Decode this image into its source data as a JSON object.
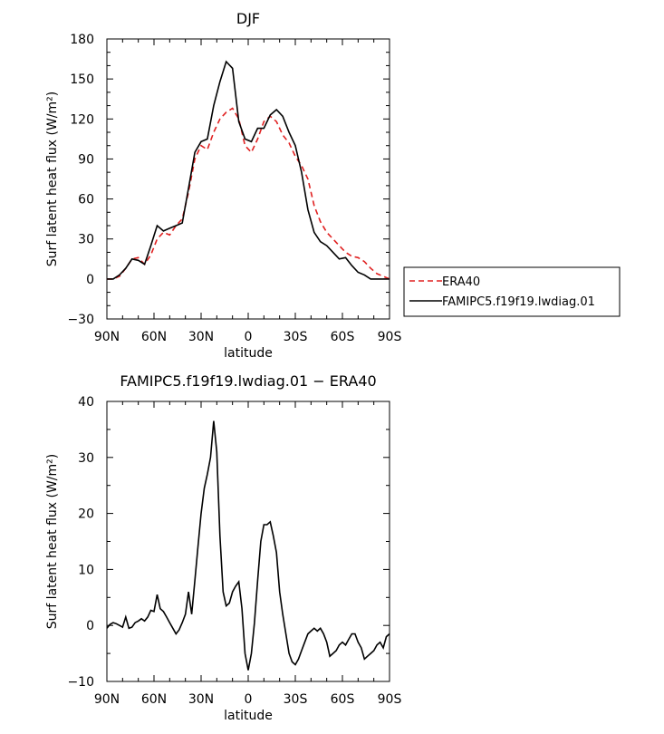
{
  "chart_data": [
    {
      "type": "line",
      "title": "DJF",
      "xlabel": "latitude",
      "ylabel": "Surf latent heat flux (W/m²)",
      "xlim": [
        90,
        -90
      ],
      "ylim": [
        -30,
        180
      ],
      "xticks": [
        90,
        60,
        30,
        0,
        -30,
        -60,
        -90
      ],
      "xtick_labels": [
        "90N",
        "60N",
        "30N",
        "0",
        "30S",
        "60S",
        "90S"
      ],
      "yticks": [
        -30,
        0,
        30,
        60,
        90,
        120,
        150,
        180
      ],
      "ytick_labels": [
        "−30",
        "0",
        "30",
        "60",
        "90",
        "120",
        "150",
        "180"
      ],
      "legend_position": "right, outside plot",
      "series": [
        {
          "name": "ERA40",
          "color": "#e02020",
          "dash": "dashed",
          "x": [
            90,
            86,
            82,
            78,
            74,
            70,
            66,
            62,
            58,
            54,
            50,
            46,
            42,
            38,
            34,
            30,
            26,
            22,
            18,
            14,
            10,
            6,
            2,
            -2,
            -6,
            -10,
            -14,
            -18,
            -22,
            -26,
            -30,
            -34,
            -38,
            -42,
            -46,
            -50,
            -54,
            -58,
            -62,
            -66,
            -70,
            -74,
            -78,
            -82,
            -86,
            -90
          ],
          "y": [
            0,
            0,
            2,
            8,
            15,
            16,
            11,
            18,
            30,
            35,
            33,
            40,
            45,
            65,
            90,
            100,
            97,
            110,
            120,
            125,
            128,
            120,
            100,
            95,
            105,
            118,
            122,
            118,
            108,
            102,
            92,
            85,
            75,
            55,
            43,
            35,
            30,
            25,
            20,
            17,
            16,
            13,
            8,
            4,
            2,
            0
          ]
        },
        {
          "name": "FAMIPC5.f19f19.lwdiag.01",
          "color": "#000000",
          "dash": "solid",
          "x": [
            90,
            86,
            82,
            78,
            74,
            70,
            66,
            62,
            58,
            54,
            50,
            46,
            42,
            38,
            34,
            30,
            26,
            22,
            18,
            14,
            10,
            6,
            2,
            -2,
            -6,
            -10,
            -14,
            -18,
            -22,
            -26,
            -30,
            -34,
            -38,
            -42,
            -46,
            -50,
            -54,
            -58,
            -62,
            -66,
            -70,
            -74,
            -78,
            -82,
            -86,
            -90
          ],
          "y": [
            0,
            0,
            3,
            8,
            15,
            14,
            11,
            25,
            40,
            36,
            38,
            40,
            42,
            68,
            95,
            103,
            105,
            130,
            148,
            163,
            158,
            118,
            105,
            103,
            113,
            113,
            123,
            127,
            122,
            110,
            100,
            80,
            52,
            35,
            28,
            25,
            20,
            15,
            16,
            10,
            5,
            3,
            0,
            0,
            0,
            0
          ]
        }
      ]
    },
    {
      "type": "line",
      "title": "FAMIPC5.f19f19.lwdiag.01 − ERA40",
      "xlabel": "latitude",
      "ylabel": "Surf latent heat flux (W/m²)",
      "xlim": [
        90,
        -90
      ],
      "ylim": [
        -10,
        40
      ],
      "xticks": [
        90,
        60,
        30,
        0,
        -30,
        -60,
        -90
      ],
      "xtick_labels": [
        "90N",
        "60N",
        "30N",
        "0",
        "30S",
        "60S",
        "90S"
      ],
      "yticks": [
        -10,
        0,
        10,
        20,
        30,
        40
      ],
      "ytick_labels": [
        "−10",
        "0",
        "10",
        "20",
        "30",
        "40"
      ],
      "series": [
        {
          "name": "",
          "color": "#000000",
          "dash": "solid",
          "x": [
            90,
            88,
            86,
            84,
            82,
            80,
            78,
            76,
            74,
            72,
            70,
            68,
            66,
            64,
            62,
            60,
            58,
            56,
            54,
            52,
            50,
            48,
            46,
            44,
            42,
            40,
            38,
            36,
            34,
            32,
            30,
            28,
            26,
            24,
            22,
            20,
            18,
            16,
            14,
            12,
            10,
            8,
            6,
            4,
            2,
            0,
            -2,
            -4,
            -6,
            -8,
            -10,
            -12,
            -14,
            -16,
            -18,
            -20,
            -22,
            -24,
            -26,
            -28,
            -30,
            -32,
            -34,
            -36,
            -38,
            -40,
            -42,
            -44,
            -46,
            -48,
            -50,
            -52,
            -54,
            -56,
            -58,
            -60,
            -62,
            -64,
            -66,
            -68,
            -70,
            -72,
            -74,
            -76,
            -78,
            -80,
            -82,
            -84,
            -86,
            -88,
            -90
          ],
          "y": [
            -0.5,
            0.2,
            0.5,
            0.3,
            0,
            -0.3,
            1.5,
            -0.5,
            -0.3,
            0.5,
            0.8,
            1.2,
            0.8,
            1.5,
            2.7,
            2.5,
            5.5,
            3,
            2.5,
            1.5,
            0.5,
            -0.5,
            -1.5,
            -0.8,
            0.5,
            2,
            6,
            2,
            8,
            14,
            20,
            24.5,
            27,
            30,
            36.5,
            31,
            16,
            6,
            3.5,
            4,
            6,
            7,
            7.8,
            3,
            -5,
            -8,
            -5,
            0.5,
            8,
            15,
            18,
            18,
            18.5,
            16,
            13,
            6,
            2,
            -1.5,
            -5,
            -6.5,
            -7,
            -6,
            -4.5,
            -3,
            -1.5,
            -1,
            -0.5,
            -1,
            -0.5,
            -1.5,
            -3,
            -5.5,
            -5,
            -4.5,
            -3.5,
            -3,
            -3.5,
            -2.5,
            -1.5,
            -1.5,
            -3,
            -4,
            -6,
            -5.5,
            -5,
            -4.5,
            -3.5,
            -3,
            -4,
            -2,
            -1.5
          ]
        }
      ]
    }
  ]
}
